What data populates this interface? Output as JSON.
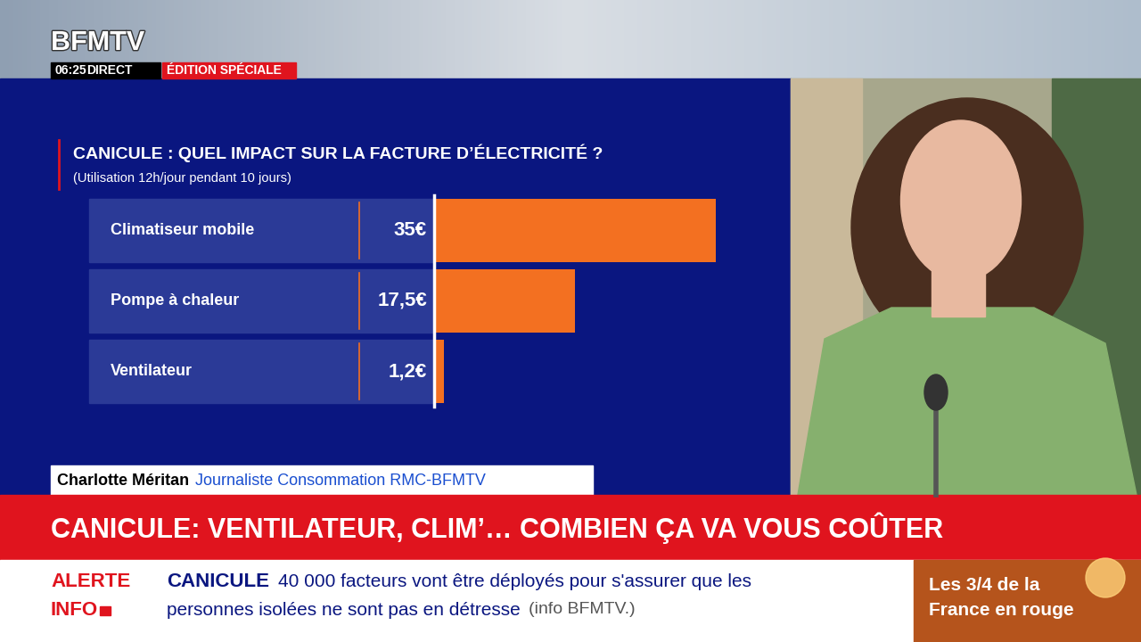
{
  "chart_data": {
    "type": "bar",
    "orientation": "horizontal",
    "title": "CANICULE : QUEL IMPACT SUR LA FACTURE D’ÉLECTRICITÉ ?",
    "subtitle": "(Utilisation 12h/jour pendant 10 jours)",
    "categories": [
      "Climatiseur mobile",
      "Pompe à chaleur",
      "Ventilateur"
    ],
    "values": [
      35,
      17.5,
      1.2
    ],
    "value_labels": [
      "35€",
      "17,5€",
      "1,2€"
    ],
    "data_labels": true,
    "color": "#f37021",
    "xlim": [
      0,
      35
    ],
    "tick_labels": false,
    "grid": false
  },
  "screen": {
    "channel": "BFMTV",
    "time": "06:25",
    "live": "DIRECT",
    "edition": "ÉDITION SPÉCIALE",
    "speaker": {
      "name": "Charlotte Méritan",
      "role": "Journaliste Consommation RMC-BFMTV"
    },
    "headline": "CANICULE: VENTILATEUR, CLIM’… COMBIEN ÇA VA VOUS COÛTER",
    "ticker": {
      "alert": [
        "ALERTE",
        "INFO"
      ],
      "topic": "CANICULE",
      "lines": [
        "40 000 facteurs vont être déployés pour s'assurer que les",
        "personnes isolées ne sont pas en détresse"
      ],
      "source": "(info BFMTV.)"
    },
    "corner": [
      "Les 3/4 de la",
      "France en rouge"
    ]
  }
}
